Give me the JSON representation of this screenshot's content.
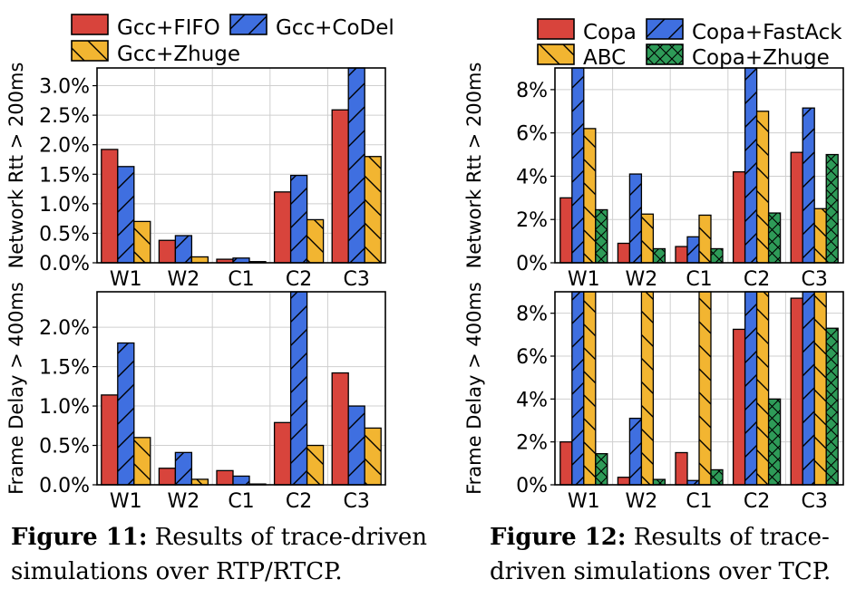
{
  "patterns": {
    "fifo": {
      "color": "#d8443c",
      "hatch": "none"
    },
    "codel": {
      "color": "#3f6fe0",
      "hatch": "diag-up"
    },
    "zhuge": {
      "color": "#f2b531",
      "hatch": "diag-down"
    },
    "copa": {
      "color": "#d8443c",
      "hatch": "none"
    },
    "fastack": {
      "color": "#3f6fe0",
      "hatch": "diag-up"
    },
    "abc": {
      "color": "#f2b531",
      "hatch": "diag-down"
    },
    "copazhuge": {
      "color": "#2e9b58",
      "hatch": "cross"
    }
  },
  "figures": [
    {
      "caption_label": "Figure 11:",
      "caption_text": "Results of trace-driven simulations over RTP/RTCP.",
      "legend": [
        {
          "label": "Gcc+FIFO",
          "pattern": "fifo"
        },
        {
          "label": "Gcc+CoDel",
          "pattern": "codel"
        },
        {
          "label": "Gcc+Zhuge",
          "pattern": "zhuge"
        }
      ]
    },
    {
      "caption_label": "Figure 12:",
      "caption_text": "Results of trace-driven simulations over TCP.",
      "legend": [
        {
          "label": "Copa",
          "pattern": "copa"
        },
        {
          "label": "Copa+FastAck",
          "pattern": "fastack"
        },
        {
          "label": "ABC",
          "pattern": "abc"
        },
        {
          "label": "Copa+Zhuge",
          "pattern": "copazhuge"
        }
      ]
    }
  ],
  "chart_data": [
    {
      "type": "bar",
      "figure": "Figure 11",
      "ylabel": "Network Rtt > 200ms",
      "categories": [
        "W1",
        "W2",
        "C1",
        "C2",
        "C3"
      ],
      "ylim": [
        0,
        3.3
      ],
      "yticks": [
        0,
        0.5,
        1.0,
        1.5,
        2.0,
        2.5,
        3.0
      ],
      "ytick_labels": [
        "0.0%",
        "0.5%",
        "1.0%",
        "1.5%",
        "2.0%",
        "2.5%",
        "3.0%"
      ],
      "grid": true,
      "series": [
        {
          "name": "Gcc+FIFO",
          "pattern": "fifo",
          "values": [
            1.92,
            0.38,
            0.06,
            1.2,
            2.59
          ]
        },
        {
          "name": "Gcc+CoDel",
          "pattern": "codel",
          "values": [
            1.63,
            0.46,
            0.08,
            1.48,
            3.3
          ]
        },
        {
          "name": "Gcc+Zhuge",
          "pattern": "zhuge",
          "values": [
            0.7,
            0.1,
            0.02,
            0.73,
            1.8
          ]
        }
      ]
    },
    {
      "type": "bar",
      "figure": "Figure 11",
      "ylabel": "Frame Delay > 400ms",
      "categories": [
        "W1",
        "W2",
        "C1",
        "C2",
        "C3"
      ],
      "ylim": [
        0,
        2.45
      ],
      "yticks": [
        0,
        0.5,
        1.0,
        1.5,
        2.0
      ],
      "ytick_labels": [
        "0.0%",
        "0.5%",
        "1.0%",
        "1.5%",
        "2.0%"
      ],
      "grid": true,
      "series": [
        {
          "name": "Gcc+FIFO",
          "pattern": "fifo",
          "values": [
            1.14,
            0.21,
            0.18,
            0.79,
            1.42
          ]
        },
        {
          "name": "Gcc+CoDel",
          "pattern": "codel",
          "values": [
            1.8,
            0.41,
            0.11,
            2.45,
            1.0
          ]
        },
        {
          "name": "Gcc+Zhuge",
          "pattern": "zhuge",
          "values": [
            0.6,
            0.07,
            0.01,
            0.5,
            0.72
          ]
        }
      ]
    },
    {
      "type": "bar",
      "figure": "Figure 12",
      "ylabel": "Network Rtt > 200ms",
      "categories": [
        "W1",
        "W2",
        "C1",
        "C2",
        "C3"
      ],
      "ylim": [
        0,
        9
      ],
      "yticks": [
        0,
        2,
        4,
        6,
        8
      ],
      "ytick_labels": [
        "0%",
        "2%",
        "4%",
        "6%",
        "8%"
      ],
      "grid": true,
      "series": [
        {
          "name": "Copa",
          "pattern": "copa",
          "values": [
            3.0,
            0.9,
            0.75,
            4.2,
            5.1
          ]
        },
        {
          "name": "Copa+FastAck",
          "pattern": "fastack",
          "values": [
            9.0,
            4.1,
            1.2,
            9.0,
            7.15
          ]
        },
        {
          "name": "ABC",
          "pattern": "abc",
          "values": [
            6.2,
            2.25,
            2.2,
            7.0,
            2.5
          ]
        },
        {
          "name": "Copa+Zhuge",
          "pattern": "copazhuge",
          "values": [
            2.45,
            0.65,
            0.65,
            2.3,
            5.0
          ]
        }
      ]
    },
    {
      "type": "bar",
      "figure": "Figure 12",
      "ylabel": "Frame Delay > 400ms",
      "categories": [
        "W1",
        "W2",
        "C1",
        "C2",
        "C3"
      ],
      "ylim": [
        0,
        9
      ],
      "yticks": [
        0,
        2,
        4,
        6,
        8
      ],
      "ytick_labels": [
        "0%",
        "2%",
        "4%",
        "6%",
        "8%"
      ],
      "grid": true,
      "series": [
        {
          "name": "Copa",
          "pattern": "copa",
          "values": [
            2.0,
            0.35,
            1.5,
            7.25,
            8.7
          ]
        },
        {
          "name": "Copa+FastAck",
          "pattern": "fastack",
          "values": [
            9.0,
            3.1,
            0.2,
            9.0,
            9.0
          ]
        },
        {
          "name": "ABC",
          "pattern": "abc",
          "values": [
            9.0,
            9.0,
            9.0,
            9.0,
            9.0
          ]
        },
        {
          "name": "Copa+Zhuge",
          "pattern": "copazhuge",
          "values": [
            1.45,
            0.25,
            0.7,
            4.0,
            7.3
          ]
        }
      ]
    }
  ]
}
